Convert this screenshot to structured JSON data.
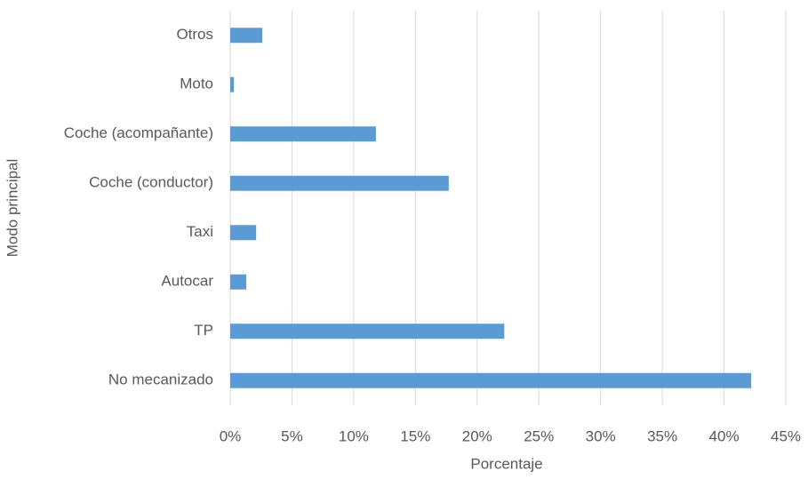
{
  "chart_data": {
    "type": "hbar",
    "xlabel": "Porcentaje",
    "ylabel": "Modo principal",
    "categories": [
      "Otros",
      "Moto",
      "Coche (acompañante)",
      "Coche (conductor)",
      "Taxi",
      "Autocar",
      "TP",
      "No mecanizado"
    ],
    "values": [
      2.6,
      0.3,
      11.8,
      17.7,
      2.1,
      1.3,
      22.2,
      42.2
    ],
    "color": "#5b9bd5",
    "xlim": [
      0,
      45
    ],
    "xticks": [
      {
        "value": 0,
        "label": "0%"
      },
      {
        "value": 5,
        "label": "5%"
      },
      {
        "value": 10,
        "label": "10%"
      },
      {
        "value": 15,
        "label": "15%"
      },
      {
        "value": 20,
        "label": "20%"
      },
      {
        "value": 25,
        "label": "25%"
      },
      {
        "value": 30,
        "label": "30%"
      },
      {
        "value": 35,
        "label": "35%"
      },
      {
        "value": 40,
        "label": "40%"
      },
      {
        "value": 45,
        "label": "45%"
      }
    ],
    "grid": true
  }
}
